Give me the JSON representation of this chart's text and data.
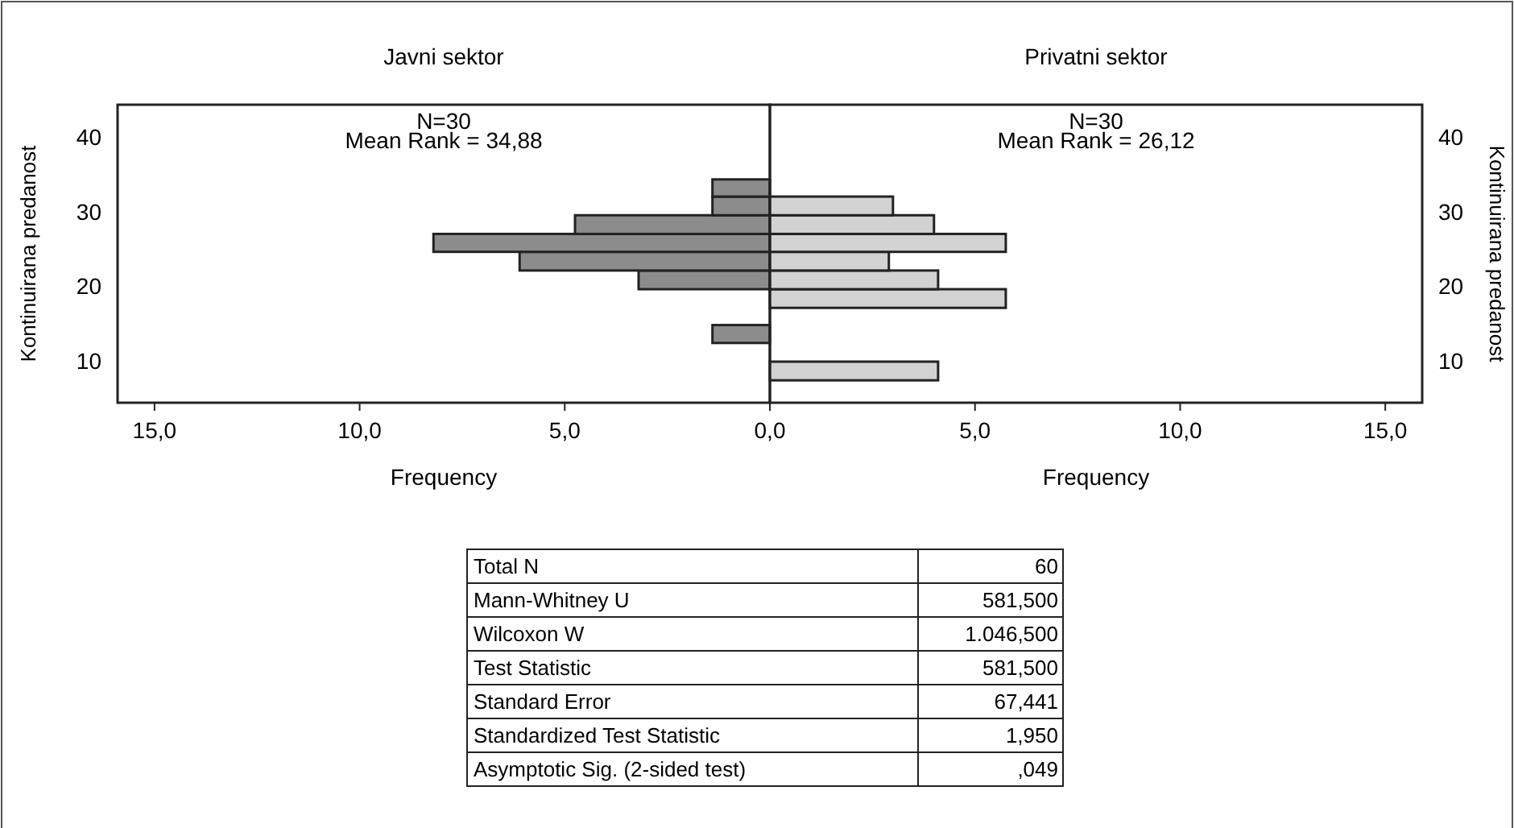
{
  "chart_data": [
    {
      "type": "histogram",
      "orientation": "horizontal",
      "title": "Javni sektor",
      "xlabel": "Frequency",
      "ylabel": "Kontinuirana predanost",
      "bins": [
        12.4,
        14.8,
        19.6,
        22.1,
        24.6,
        27.0,
        29.5,
        32.0,
        34.3
      ],
      "values": [
        1.4,
        0,
        3.2,
        6.1,
        8.2,
        4.75,
        1.4,
        1.4
      ],
      "color": "#8c8c8c",
      "xlim": [
        15.9,
        0
      ],
      "xticks": [
        {
          "value": 15,
          "label": "15,0"
        },
        {
          "value": 10,
          "label": "10,0"
        },
        {
          "value": 5,
          "label": "5,0"
        },
        {
          "value": 0,
          "label": null
        }
      ],
      "ylim": [
        4.4,
        44.3
      ],
      "yticks": [
        10,
        20,
        30,
        40
      ],
      "annotations": [
        "N=30",
        "Mean Rank = 34,88"
      ]
    },
    {
      "type": "histogram",
      "orientation": "horizontal",
      "title": "Privatni sektor",
      "xlabel": "Frequency",
      "ylabel": "Kontinuirana predanost",
      "bins": [
        7.4,
        9.9,
        17.1,
        19.6,
        22.1,
        24.6,
        27.0,
        29.5,
        32.0
      ],
      "values": [
        4.1,
        0,
        5.75,
        4.1,
        2.9,
        5.75,
        4.0,
        3.0
      ],
      "color": "#d2d2d2",
      "xlim": [
        0,
        15.9
      ],
      "xticks": [
        {
          "value": 0,
          "label": "0,0"
        },
        {
          "value": 5,
          "label": "5,0"
        },
        {
          "value": 10,
          "label": "10,0"
        },
        {
          "value": 15,
          "label": "15,0"
        }
      ],
      "ylim": [
        4.4,
        44.3
      ],
      "yticks": [
        10,
        20,
        30,
        40
      ],
      "annotations": [
        "N=30",
        "Mean Rank = 26,12"
      ]
    },
    {
      "type": "other",
      "annotations": [
        "Total N",
        "60",
        "Mann-Whitney U",
        "581,500",
        "Wilcoxon W",
        "1.046,500",
        "Test Statistic",
        "581,500",
        "Standard Error",
        "67,441",
        "Standardized Test Statistic",
        "1,950",
        "Asymptotic Sig. (2-sided test)",
        ",049"
      ]
    }
  ]
}
